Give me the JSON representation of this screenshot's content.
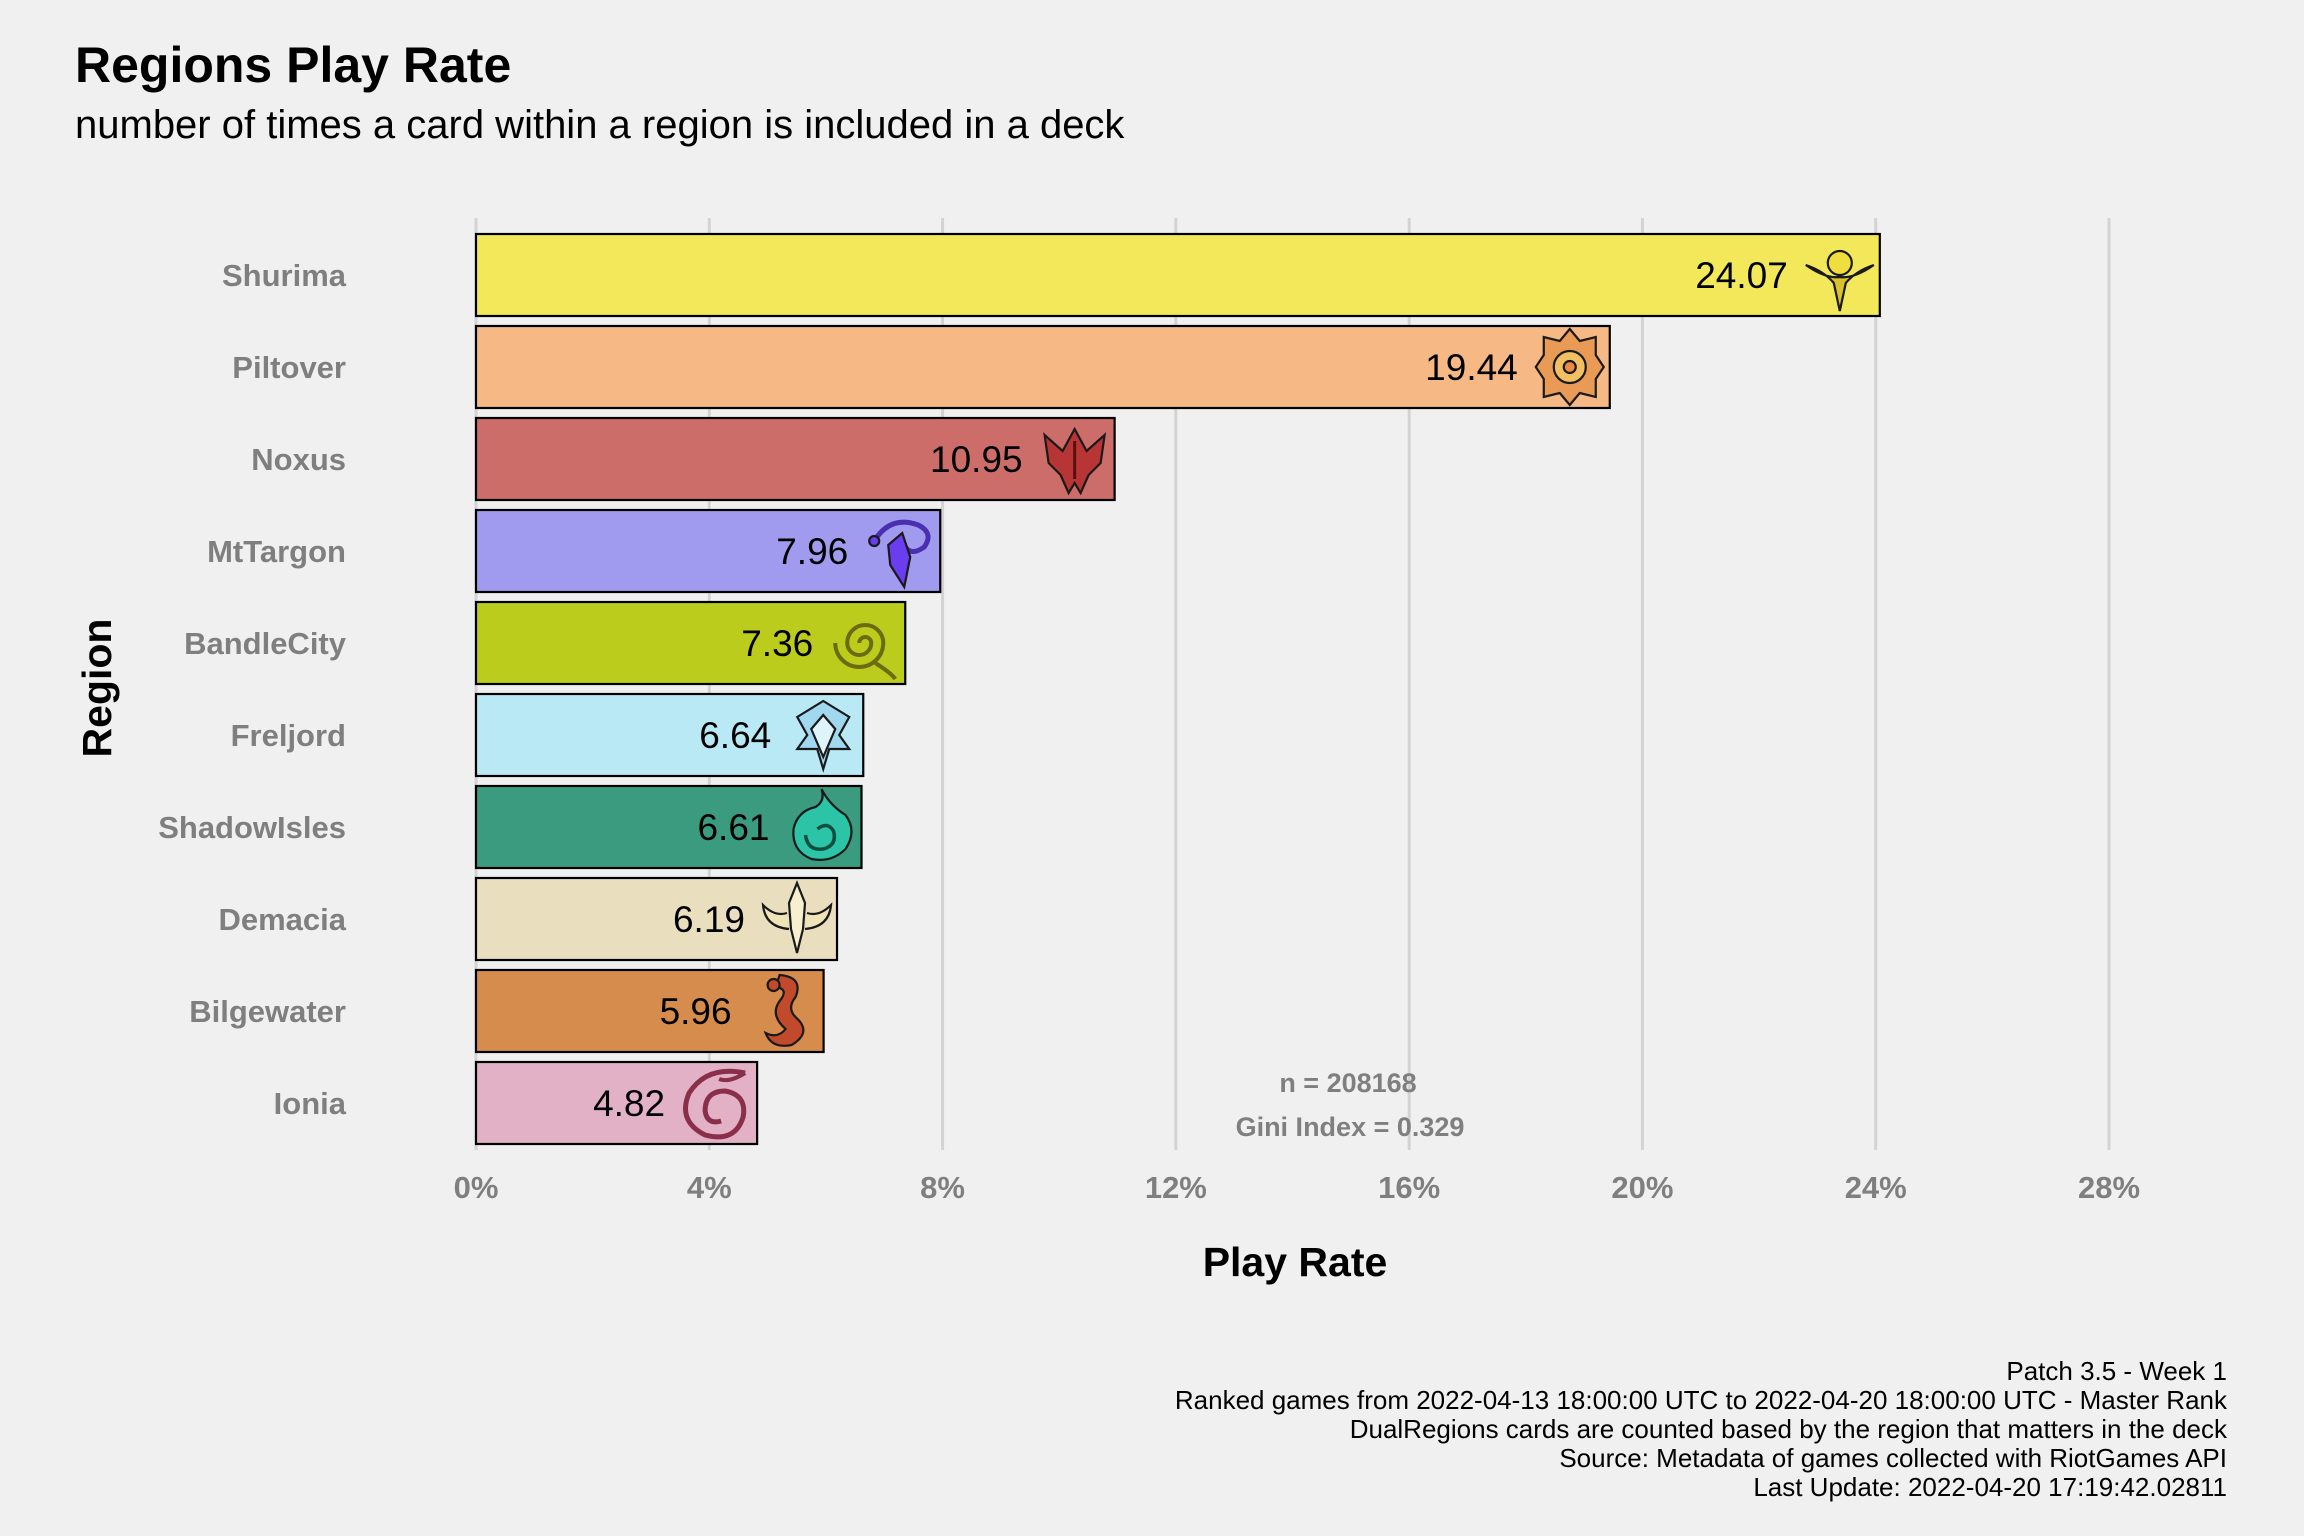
{
  "chart_data": {
    "type": "bar",
    "orientation": "horizontal",
    "title": "Regions Play Rate",
    "subtitle": "number of times a card within a region is included in a deck",
    "xlabel": "Play Rate",
    "ylabel": "Region",
    "xlim": [
      0,
      28
    ],
    "xticks": [
      "0%",
      "4%",
      "8%",
      "12%",
      "16%",
      "20%",
      "24%",
      "28%"
    ],
    "grid": "vertical major",
    "legend": "none",
    "categories": [
      "Shurima",
      "Piltover",
      "Noxus",
      "MtTargon",
      "BandleCity",
      "Freljord",
      "ShadowIsles",
      "Demacia",
      "Bilgewater",
      "Ionia"
    ],
    "values": [
      24.07,
      19.44,
      10.95,
      7.96,
      7.36,
      6.64,
      6.61,
      6.19,
      5.96,
      4.82
    ],
    "value_labels": [
      "24.07",
      "19.44",
      "10.95",
      "7.96",
      "7.36",
      "6.64",
      "6.61",
      "6.19",
      "5.96",
      "4.82"
    ],
    "colors": [
      "#f2e85a",
      "#f6b985",
      "#cd6d6a",
      "#a19bef",
      "#bccc1c",
      "#b8e9f5",
      "#3a9b7f",
      "#e9dfbe",
      "#d68c4d",
      "#e2b1c5"
    ],
    "icons": [
      "shurima-icon",
      "piltover-icon",
      "noxus-icon",
      "mttargon-icon",
      "bandlecity-icon",
      "freljord-icon",
      "shadowisles-icon",
      "demacia-icon",
      "bilgewater-icon",
      "ionia-icon"
    ],
    "annotations": [
      "n = 208168",
      "Gini Index = 0.329"
    ],
    "caption": [
      "Patch 3.5 - Week 1",
      "Ranked games from 2022-04-13 18:00:00 UTC to 2022-04-20 18:00:00 UTC - Master Rank",
      "DualRegions cards are counted based by the region that matters in the deck",
      "Source: Metadata of games collected with RiotGames API",
      "Last Update: 2022-04-20 17:19:42.02811"
    ]
  }
}
